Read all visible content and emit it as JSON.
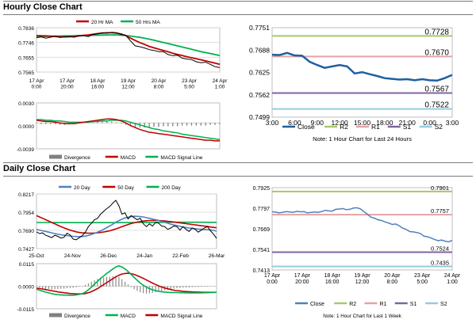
{
  "sections": [
    {
      "title": "Hourly Close Chart"
    },
    {
      "title": "Daily Close Chart"
    }
  ],
  "chart_data": [
    {
      "id": "hourly-price",
      "type": "line",
      "title": "",
      "ylim": [
        0.7565,
        0.7836
      ],
      "yticks": [
        "0.7836",
        "0.7746",
        "0.7655",
        "0.7565"
      ],
      "xticks": [
        "17 Apr\n0:00",
        "17 Apr\n20:00",
        "18 Apr\n16:00",
        "19 Apr\n12:00",
        "20 Apr\n8:00",
        "23 Apr\n5:00",
        "24 Apr\n1:00"
      ],
      "legend": [
        "20 Hr MA",
        "50 Hrs MA"
      ],
      "colors": {
        "price": "#000000",
        "ma20": "#c00000",
        "ma50": "#00b050"
      },
      "series": [
        {
          "name": "price",
          "values": [
            0.7775,
            0.778,
            0.7772,
            0.7778,
            0.7785,
            0.7776,
            0.778,
            0.7782,
            0.7778,
            0.7785,
            0.7788,
            0.7782,
            0.7795,
            0.7798,
            0.7805,
            0.7802,
            0.7808,
            0.7805,
            0.7795,
            0.779,
            0.7755,
            0.7725,
            0.772,
            0.7712,
            0.7702,
            0.7697,
            0.769,
            0.769,
            0.7672,
            0.7665,
            0.7668,
            0.765,
            0.7645,
            0.7641,
            0.7628,
            0.7622,
            0.7625,
            0.7612,
            0.7598,
            0.7592
          ]
        },
        {
          "name": "20 Hr MA",
          "values": [
            0.7788,
            0.7787,
            0.7786,
            0.7784,
            0.7782,
            0.7781,
            0.778,
            0.7781,
            0.7783,
            0.7786,
            0.7789,
            0.7792,
            0.7796,
            0.78,
            0.7803,
            0.7805,
            0.7805,
            0.7803,
            0.7798,
            0.7788,
            0.7772,
            0.7758,
            0.7745,
            0.7734,
            0.7722,
            0.7713,
            0.7705,
            0.7697,
            0.7689,
            0.768,
            0.7673,
            0.7666,
            0.7659,
            0.7652,
            0.7646,
            0.764,
            0.7633,
            0.7626,
            0.7619,
            0.7612
          ]
        },
        {
          "name": "50 Hrs MA",
          "values": [
            0.7781,
            0.7782,
            0.7783,
            0.7784,
            0.7784,
            0.7785,
            0.7786,
            0.7786,
            0.7787,
            0.7788,
            0.7788,
            0.7789,
            0.779,
            0.779,
            0.7791,
            0.7792,
            0.7792,
            0.7792,
            0.779,
            0.7788,
            0.7785,
            0.7781,
            0.7777,
            0.7772,
            0.7766,
            0.776,
            0.7753,
            0.7746,
            0.7739,
            0.7732,
            0.7725,
            0.7718,
            0.7711,
            0.7704,
            0.7697,
            0.769,
            0.7684,
            0.7678,
            0.7672,
            0.7666
          ]
        }
      ]
    },
    {
      "id": "hourly-macd",
      "type": "line",
      "ylim": [
        -0.0039,
        0.003
      ],
      "yticks": [
        "0.0030",
        "0.0000",
        "-0.0039"
      ],
      "legend": [
        "Divergence",
        "MACD",
        "MACD Signal Line"
      ],
      "colors": {
        "divergence": "#808080",
        "macd": "#c00000",
        "signal": "#00b050"
      },
      "series": [
        {
          "name": "MACD",
          "values": [
            0.0004,
            0.0003,
            0.0002,
            0.0002,
            0.0001,
            0.0,
            -0.0001,
            -0.0001,
            -0.0001,
            0.0,
            0.0001,
            0.0002,
            0.0003,
            0.0004,
            0.0005,
            0.0006,
            0.0006,
            0.0005,
            0.0003,
            0.0,
            -0.0004,
            -0.0007,
            -0.001,
            -0.0012,
            -0.0014,
            -0.0015,
            -0.0016,
            -0.0017,
            -0.0018,
            -0.0019,
            -0.002,
            -0.0021,
            -0.0022,
            -0.0023,
            -0.0024,
            -0.0025,
            -0.0026,
            -0.0026,
            -0.0027,
            -0.0027
          ]
        },
        {
          "name": "MACD Signal Line",
          "values": [
            0.0005,
            0.0005,
            0.0004,
            0.0004,
            0.0003,
            0.0003,
            0.0002,
            0.0001,
            0.0001,
            0.0001,
            0.0001,
            0.0001,
            0.0002,
            0.0002,
            0.0003,
            0.0003,
            0.0004,
            0.0004,
            0.0004,
            0.0003,
            0.0001,
            -0.0001,
            -0.0003,
            -0.0005,
            -0.0007,
            -0.0009,
            -0.001,
            -0.0012,
            -0.0013,
            -0.0014,
            -0.0015,
            -0.0017,
            -0.0018,
            -0.0019,
            -0.002,
            -0.0021,
            -0.0022,
            -0.0023,
            -0.0024,
            -0.0025
          ]
        },
        {
          "name": "Divergence",
          "values": [
            -0.0001,
            -0.0002,
            -0.0002,
            -0.0002,
            -0.0002,
            -0.0003,
            -0.0003,
            -0.0002,
            -0.0002,
            -0.0001,
            0.0,
            0.0001,
            0.0001,
            0.0002,
            0.0002,
            0.0003,
            0.0002,
            0.0001,
            -0.0001,
            -0.0003,
            -0.0005,
            -0.0006,
            -0.0007,
            -0.0007,
            -0.0007,
            -0.0006,
            -0.0006,
            -0.0005,
            -0.0005,
            -0.0005,
            -0.0005,
            -0.0004,
            -0.0004,
            -0.0004,
            -0.0004,
            -0.0004,
            -0.0004,
            -0.0003,
            -0.0003,
            -0.0002
          ]
        }
      ]
    },
    {
      "id": "hourly-pivot",
      "type": "line",
      "ylim": [
        0.7499,
        0.7751
      ],
      "yticks": [
        "0.7751",
        "0.7688",
        "0.7625",
        "0.7562",
        "0.7499"
      ],
      "xticks": [
        "3:00",
        "6:00",
        "9:00",
        "12:00",
        "15:00",
        "18:00",
        "21:00",
        "0:00",
        "3:00"
      ],
      "legend": [
        "Close",
        "R2",
        "R1",
        "S1",
        "S2"
      ],
      "colors": {
        "close": "#1f5f9f",
        "r2": "#a6c96a",
        "r1": "#e6a3a3",
        "s1": "#8064a2",
        "s2": "#93cddd"
      },
      "levels": {
        "R2": 0.7728,
        "R1": 0.767,
        "S1": 0.7567,
        "S2": 0.7522
      },
      "level_labels": {
        "R2": "0.7728",
        "R1": "0.7670",
        "S1": "0.7567",
        "S2": "0.7522"
      },
      "close": [
        0.7675,
        0.7674,
        0.768,
        0.7673,
        0.7672,
        0.7655,
        0.7646,
        0.7638,
        0.7642,
        0.7646,
        0.7642,
        0.7622,
        0.7626,
        0.762,
        0.7615,
        0.7609,
        0.7607,
        0.7605,
        0.7606,
        0.7603,
        0.7606,
        0.7603,
        0.7602,
        0.7609,
        0.7618
      ],
      "note": "Note: 1 Hour Chart for Last 24 Hours"
    },
    {
      "id": "daily-price",
      "type": "line",
      "ylim": [
        0.7427,
        0.8217
      ],
      "yticks": [
        "0.8217",
        "0.7954",
        "0.7690",
        "0.7427"
      ],
      "xticks": [
        "25-Oct",
        "24-Nov",
        "26-Dec",
        "24-Jan",
        "22-Feb",
        "26-Mar"
      ],
      "legend": [
        "20 Day",
        "50 Day",
        "200 Day"
      ],
      "colors": {
        "price": "#000000",
        "ma20": "#4f81bd",
        "ma50": "#c00000",
        "ma200": "#00b050"
      },
      "series": [
        {
          "name": "price",
          "values": [
            0.767,
            0.7645,
            0.7655,
            0.762,
            0.7605,
            0.7585,
            0.762,
            0.7605,
            0.758,
            0.759,
            0.765,
            0.7625,
            0.7565,
            0.7555,
            0.7585,
            0.7615,
            0.7665,
            0.7745,
            0.7795,
            0.7845,
            0.7865,
            0.7925,
            0.7965,
            0.8005,
            0.8035,
            0.8085,
            0.8125,
            0.8045,
            0.7925,
            0.7945,
            0.7855,
            0.7905,
            0.7875,
            0.7845,
            0.7865,
            0.7785,
            0.7745,
            0.7785,
            0.7755,
            0.7805,
            0.7795,
            0.7755,
            0.7745,
            0.7705,
            0.7725,
            0.7755,
            0.7745,
            0.7695,
            0.7745,
            0.7705,
            0.7675,
            0.7725,
            0.7705,
            0.7665,
            0.7695,
            0.7725,
            0.7745,
            0.7685,
            0.7635,
            0.7575
          ]
        },
        {
          "name": "20 Day",
          "values": [
            0.7705,
            0.7695,
            0.7685,
            0.7675,
            0.7665,
            0.7655,
            0.7645,
            0.7635,
            0.7627,
            0.762,
            0.7615,
            0.761,
            0.7605,
            0.7602,
            0.76,
            0.7602,
            0.7608,
            0.7618,
            0.7632,
            0.7648,
            0.7665,
            0.7685,
            0.7705,
            0.773,
            0.7755,
            0.778,
            0.7808,
            0.7832,
            0.7852,
            0.787,
            0.7882,
            0.789,
            0.7895,
            0.7893,
            0.789,
            0.7885,
            0.7875,
            0.7865,
            0.7855,
            0.7845,
            0.7835,
            0.782,
            0.7808,
            0.7795,
            0.778,
            0.777,
            0.776,
            0.775,
            0.774,
            0.7732,
            0.7725,
            0.772,
            0.7715,
            0.771,
            0.7706,
            0.7704,
            0.7702,
            0.7698,
            0.769,
            0.768
          ]
        },
        {
          "name": "50 Day",
          "values": [
            0.7905,
            0.7885,
            0.7865,
            0.7845,
            0.7825,
            0.7805,
            0.7785,
            0.7765,
            0.7745,
            0.7728,
            0.771,
            0.7695,
            0.7682,
            0.767,
            0.766,
            0.7655,
            0.7652,
            0.765,
            0.765,
            0.7652,
            0.7656,
            0.766,
            0.7667,
            0.7675,
            0.7685,
            0.7698,
            0.7712,
            0.7728,
            0.7745,
            0.776,
            0.7775,
            0.779,
            0.78,
            0.781,
            0.7818,
            0.7825,
            0.783,
            0.7833,
            0.7835,
            0.7835,
            0.7833,
            0.783,
            0.7827,
            0.7822,
            0.7817,
            0.7812,
            0.7806,
            0.78,
            0.7794,
            0.7788,
            0.7782,
            0.7776,
            0.777,
            0.7764,
            0.7758,
            0.7752,
            0.7746,
            0.774,
            0.7734,
            0.7728
          ]
        },
        {
          "name": "200 Day",
          "values": [
            0.7805,
            0.7805,
            0.7805,
            0.7805,
            0.7805,
            0.7805,
            0.7804,
            0.7804,
            0.7804,
            0.7804,
            0.7804,
            0.7803,
            0.7803,
            0.7803,
            0.7802,
            0.7802,
            0.7802,
            0.7802,
            0.7802,
            0.7802,
            0.7802,
            0.7802,
            0.7802,
            0.7802,
            0.7803,
            0.7803,
            0.7803,
            0.7803,
            0.7804,
            0.7804,
            0.7804,
            0.7805,
            0.7805,
            0.7805,
            0.7806,
            0.7806,
            0.7806,
            0.7806,
            0.7807,
            0.7807,
            0.7807,
            0.7807,
            0.7807,
            0.7808,
            0.7808,
            0.7808,
            0.7808,
            0.7808,
            0.7808,
            0.7808,
            0.7808,
            0.7808,
            0.7808,
            0.7808,
            0.7808,
            0.7808,
            0.7807,
            0.7807,
            0.7807,
            0.7806
          ]
        }
      ]
    },
    {
      "id": "daily-macd",
      "type": "line",
      "ylim": [
        -0.0115,
        0.0115
      ],
      "yticks": [
        "0.0115",
        "0.0000",
        "-0.0115"
      ],
      "legend": [
        "Divergence",
        "MACD",
        "MACD Signal Line"
      ],
      "colors": {
        "divergence": "#808080",
        "macd": "#00b050",
        "signal": "#c00000"
      },
      "series": [
        {
          "name": "MACD",
          "values": [
            -0.0015,
            -0.002,
            -0.0025,
            -0.003,
            -0.0034,
            -0.0038,
            -0.0041,
            -0.0043,
            -0.0044,
            -0.0045,
            -0.0045,
            -0.0046,
            -0.0046,
            -0.0044,
            -0.0042,
            -0.0038,
            -0.003,
            -0.0018,
            -0.0005,
            0.001,
            0.0025,
            0.004,
            0.0052,
            0.0065,
            0.0076,
            0.0088,
            0.0098,
            0.0104,
            0.0098,
            0.0088,
            0.0075,
            0.006,
            0.0045,
            0.003,
            0.0016,
            0.0005,
            -0.0005,
            -0.0012,
            -0.0018,
            -0.0022,
            -0.0026,
            -0.0028,
            -0.003,
            -0.0031,
            -0.0032,
            -0.0032,
            -0.0032,
            -0.0033,
            -0.0033,
            -0.0034,
            -0.0034,
            -0.0034,
            -0.0034,
            -0.0034,
            -0.0034,
            -0.0033,
            -0.0033,
            -0.0032,
            -0.0032,
            -0.0031
          ]
        },
        {
          "name": "MACD Signal Line",
          "values": [
            -0.001,
            -0.0012,
            -0.0014,
            -0.0017,
            -0.002,
            -0.0023,
            -0.0026,
            -0.0029,
            -0.0031,
            -0.0033,
            -0.0035,
            -0.0037,
            -0.0038,
            -0.0039,
            -0.0039,
            -0.0039,
            -0.0037,
            -0.0033,
            -0.0028,
            -0.002,
            -0.0012,
            -0.0002,
            0.0008,
            0.0018,
            0.0028,
            0.0038,
            0.0048,
            0.0056,
            0.0062,
            0.0065,
            0.0066,
            0.0064,
            0.006,
            0.0054,
            0.0047,
            0.004,
            0.0032,
            0.0024,
            0.0016,
            0.0009,
            0.0002,
            -0.0004,
            -0.0009,
            -0.0013,
            -0.0017,
            -0.002,
            -0.0022,
            -0.0024,
            -0.0026,
            -0.0027,
            -0.0028,
            -0.0029,
            -0.003,
            -0.003,
            -0.0031,
            -0.0031,
            -0.0031,
            -0.0031,
            -0.0031,
            -0.0031
          ]
        },
        {
          "name": "Divergence",
          "values": [
            -0.0005,
            -0.0008,
            -0.0011,
            -0.0013,
            -0.0014,
            -0.0015,
            -0.0015,
            -0.0014,
            -0.0013,
            -0.0012,
            -0.001,
            -0.0009,
            -0.0008,
            -0.0005,
            -0.0003,
            0.0001,
            0.0007,
            0.0015,
            0.0023,
            0.003,
            0.0037,
            0.0042,
            0.0044,
            0.0047,
            0.0048,
            0.005,
            0.005,
            0.0048,
            0.0036,
            0.0023,
            0.0009,
            -0.0004,
            -0.0015,
            -0.0024,
            -0.0031,
            -0.0035,
            -0.0037,
            -0.0036,
            -0.0034,
            -0.0031,
            -0.0028,
            -0.0024,
            -0.0021,
            -0.0018,
            -0.0015,
            -0.0012,
            -0.001,
            -0.0009,
            -0.0007,
            -0.0007,
            -0.0006,
            -0.0005,
            -0.0004,
            -0.0004,
            -0.0003,
            -0.0002,
            -0.0002,
            -0.0001,
            -0.0001,
            0.0
          ]
        }
      ]
    },
    {
      "id": "daily-pivot",
      "type": "line",
      "ylim": [
        0.7413,
        0.7925
      ],
      "yticks": [
        "0.7925",
        "0.7797",
        "0.7669",
        "0.7541",
        "0.7413"
      ],
      "xticks": [
        "17 Apr\n0:00",
        "17 Apr\n20:00",
        "18 Apr\n16:00",
        "19 Apr\n12:00",
        "20 Apr\n8:00",
        "23 Apr\n5:00",
        "24 Apr\n1:00"
      ],
      "legend": [
        "Close",
        "R2",
        "R1",
        "S1",
        "S2"
      ],
      "colors": {
        "close": "#4f81bd",
        "r2": "#a6c96a",
        "r1": "#e6a3a3",
        "s1": "#8064a2",
        "s2": "#93cddd"
      },
      "levels": {
        "R2": 0.7901,
        "R1": 0.7757,
        "S1": 0.7524,
        "S2": 0.7435
      },
      "level_labels": {
        "R2": "0.7901",
        "R1": "0.7757",
        "S1": "0.7524",
        "S2": "0.7435"
      },
      "close": [
        0.7775,
        0.7773,
        0.7768,
        0.7772,
        0.7776,
        0.7774,
        0.7772,
        0.7778,
        0.7775,
        0.7776,
        0.7768,
        0.7771,
        0.7774,
        0.7772,
        0.7776,
        0.7784,
        0.7781,
        0.7779,
        0.779,
        0.7792,
        0.7795,
        0.7788,
        0.779,
        0.7798,
        0.78,
        0.7793,
        0.7776,
        0.776,
        0.7742,
        0.7735,
        0.7725,
        0.772,
        0.7712,
        0.7705,
        0.7696,
        0.7699,
        0.7688,
        0.7673,
        0.7665,
        0.7652,
        0.765,
        0.7646,
        0.764,
        0.7623,
        0.762,
        0.7612,
        0.7603,
        0.7595,
        0.7599,
        0.7592,
        0.7588,
        0.7597
      ],
      "note": "Note: 1 Hour Chart for Last 1 Week"
    }
  ]
}
